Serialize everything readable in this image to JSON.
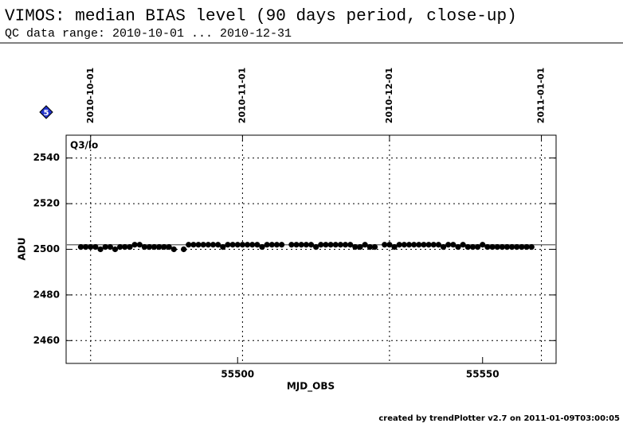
{
  "chart_data": {
    "type": "scatter",
    "title": "VIMOS: median BIAS level (90 days period, close-up)",
    "subtitle": "QC data range: 2010-10-01 ... 2010-12-31",
    "panel_label": "Q3/lo",
    "badge": "5",
    "x_label": "MJD_OBS",
    "y_label": "ADU",
    "footer": "created by trendPlotter v2.7 on 2011-01-09T03:00:05",
    "xlim": [
      55465,
      55565
    ],
    "xticks": [
      55500,
      55550
    ],
    "date_ticks": [
      {
        "value": 55470,
        "label": "2010-10-01"
      },
      {
        "value": 55501,
        "label": "2010-11-01"
      },
      {
        "value": 55531,
        "label": "2010-12-01"
      },
      {
        "value": 55562,
        "label": "2011-01-01"
      }
    ],
    "ylim": [
      2450,
      2550
    ],
    "yticks": [
      2460,
      2480,
      2500,
      2520,
      2540
    ],
    "grid": true,
    "reference_line": 2502,
    "color": "#000000",
    "series": [
      {
        "name": "Q3/lo",
        "color": "#000000",
        "x": [
          55468,
          55469,
          55470,
          55471,
          55472,
          55473,
          55474,
          55475,
          55476,
          55477,
          55478,
          55479,
          55480,
          55481,
          55482,
          55483,
          55484,
          55485,
          55486,
          55487,
          55489,
          55490,
          55491,
          55492,
          55493,
          55494,
          55495,
          55496,
          55497,
          55498,
          55499,
          55500,
          55501,
          55502,
          55503,
          55504,
          55505,
          55506,
          55507,
          55508,
          55509,
          55511,
          55512,
          55513,
          55514,
          55515,
          55516,
          55517,
          55518,
          55519,
          55520,
          55521,
          55522,
          55523,
          55524,
          55525,
          55526,
          55527,
          55528,
          55530,
          55531,
          55532,
          55533,
          55534,
          55535,
          55536,
          55537,
          55538,
          55539,
          55540,
          55541,
          55542,
          55543,
          55544,
          55545,
          55546,
          55547,
          55548,
          55549,
          55550,
          55551,
          55552,
          55553,
          55554,
          55555,
          55556,
          55557,
          55558,
          55559,
          55560
        ],
        "values": [
          2501,
          2501,
          2501,
          2501,
          2500,
          2501,
          2501,
          2500,
          2501,
          2501,
          2501,
          2502,
          2502,
          2501,
          2501,
          2501,
          2501,
          2501,
          2501,
          2500,
          2500,
          2502,
          2502,
          2502,
          2502,
          2502,
          2502,
          2502,
          2501,
          2502,
          2502,
          2502,
          2502,
          2502,
          2502,
          2502,
          2501,
          2502,
          2502,
          2502,
          2502,
          2502,
          2502,
          2502,
          2502,
          2502,
          2501,
          2502,
          2502,
          2502,
          2502,
          2502,
          2502,
          2502,
          2501,
          2501,
          2502,
          2501,
          2501,
          2502,
          2502,
          2501,
          2502,
          2502,
          2502,
          2502,
          2502,
          2502,
          2502,
          2502,
          2502,
          2501,
          2502,
          2502,
          2501,
          2502,
          2501,
          2501,
          2501,
          2502,
          2501,
          2501,
          2501,
          2501,
          2501,
          2501,
          2501,
          2501,
          2501,
          2501
        ]
      }
    ]
  }
}
